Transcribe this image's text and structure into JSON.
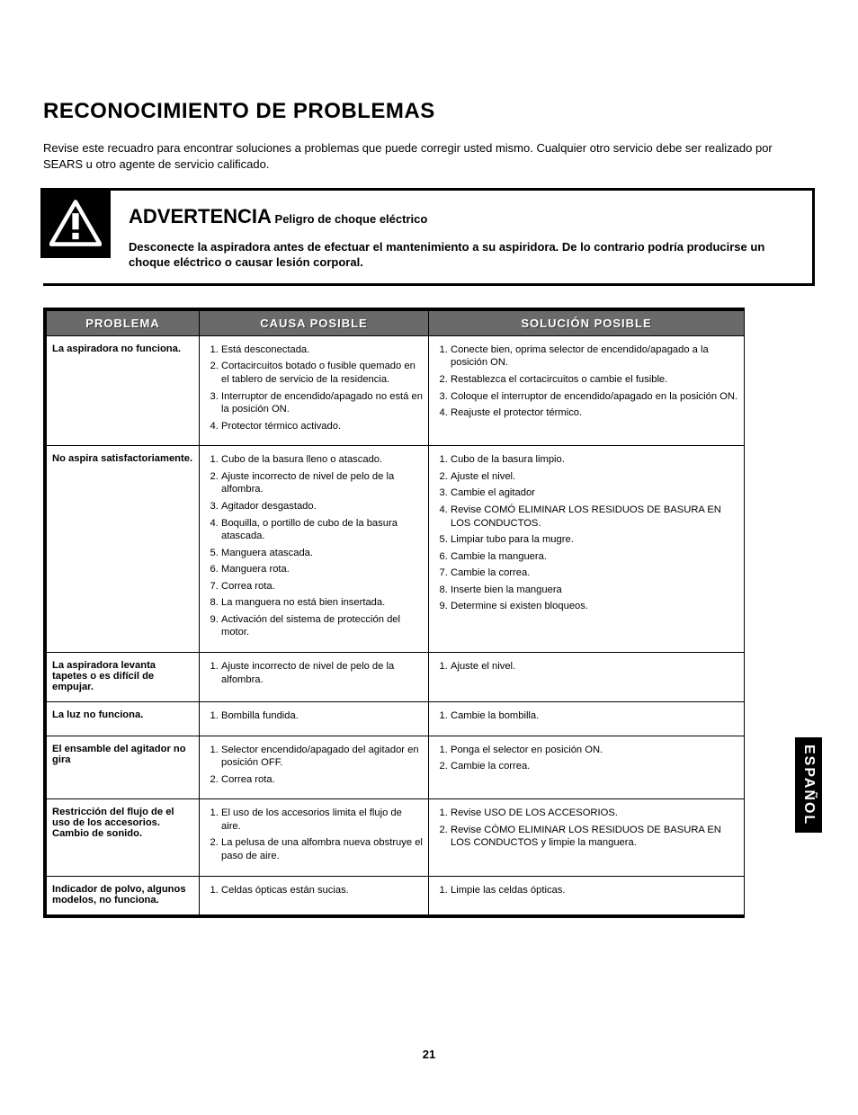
{
  "title": "RECONOCIMIENTO DE PROBLEMAS",
  "intro": "Revise este recuadro para encontrar soluciones a problemas que puede corregir usted mismo. Cualquier otro servicio debe ser realizado por SEARS u otro agente de servicio calificado.",
  "warning": {
    "heading": "ADVERTENCIA",
    "sub": "Peligro de choque eléctrico",
    "body": "Desconecte la aspiradora antes de efectuar el mantenimiento a su aspiridora. De lo contrario podría producirse un choque eléctrico o causar lesión corporal."
  },
  "headers": {
    "problem": "PROBLEMA",
    "cause": "CAUSA POSIBLE",
    "solution": "SOLUCIÓN POSIBLE"
  },
  "rows": [
    {
      "problem": "La aspiradora no funciona.",
      "causes": [
        "Está desconectada.",
        "Cortacircuitos botado o fusible quemado en el tablero de servicio de la residencia.",
        "Interruptor de encendido/apagado no está en la posición ON.",
        "Protector térmico activado."
      ],
      "solutions": [
        "Conecte bien, oprima selector de encendido/apagado a la posición ON.",
        "Restablezca el cortacircuitos o cambie el fusible.",
        "Coloque el interruptor de encendido/apagado en la posición ON.",
        "Reajuste el protector térmico."
      ]
    },
    {
      "problem": "No aspira satisfactoriamente.",
      "causes": [
        "Cubo de la basura lleno o atascado.",
        "Ajuste incorrecto de nivel de pelo de la alfombra.",
        "Agitador desgastado.",
        "Boquilla, o portillo de cubo de la basura atascada.",
        "Manguera atascada.",
        "Manguera rota.",
        "Correa rota.",
        "La manguera no está bien insertada.",
        "Activación del sistema de protección del motor."
      ],
      "solutions": [
        "Cubo de la basura limpio.",
        "Ajuste el nivel.",
        "Cambie el agitador",
        "Revise COMÓ ELIMINAR LOS RESIDUOS DE BASURA EN LOS CONDUCTOS.",
        "Limpiar tubo para la mugre.",
        "Cambie la manguera.",
        "Cambie la correa.",
        "Inserte bien la manguera",
        "Determine si existen bloqueos."
      ]
    },
    {
      "problem": "La aspiradora levanta tapetes o es difícil de empujar.",
      "causes": [
        "Ajuste incorrecto de nivel de pelo de la alfombra."
      ],
      "solutions": [
        "Ajuste el nivel."
      ]
    },
    {
      "problem": "La luz no funciona.",
      "causes": [
        "Bombilla fundida."
      ],
      "solutions": [
        "Cambie la bombilla."
      ]
    },
    {
      "problem": "El ensamble del agitador no gira",
      "causes": [
        "Selector encendido/apagado del agitador en posición OFF.",
        "Correa rota."
      ],
      "solutions": [
        "Ponga el selector en posición ON.",
        "Cambie la correa."
      ]
    },
    {
      "problem": "Restricción del flujo de el uso de los accesorios. Cambio de sonido.",
      "causes": [
        "El uso de los accesorios limita el flujo de aire.",
        "La pelusa de una alfombra nueva obstruye el paso de aire."
      ],
      "solutions": [
        "Revise USO DE LOS ACCESORIOS.",
        "Revise CÓMO ELIMINAR LOS RESIDUOS DE BASURA EN LOS CONDUCTOS y limpie la manguera."
      ]
    },
    {
      "problem": "Indicador de polvo, algunos modelos, no funciona.",
      "causes": [
        "Celdas ópticas están sucias."
      ],
      "solutions": [
        "Limpie las celdas ópticas."
      ]
    }
  ],
  "sideTab": "ESPAÑOL",
  "pageNumber": "21"
}
